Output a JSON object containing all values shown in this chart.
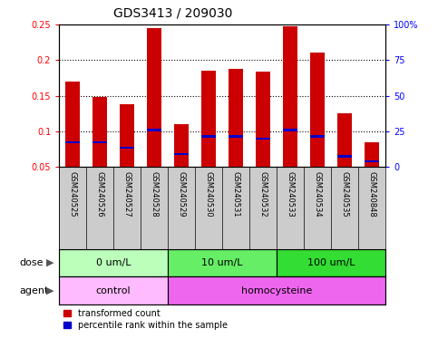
{
  "title": "GDS3413 / 209030",
  "samples": [
    "GSM240525",
    "GSM240526",
    "GSM240527",
    "GSM240528",
    "GSM240529",
    "GSM240530",
    "GSM240531",
    "GSM240532",
    "GSM240533",
    "GSM240534",
    "GSM240535",
    "GSM240848"
  ],
  "transformed_count": [
    0.17,
    0.148,
    0.138,
    0.245,
    0.11,
    0.185,
    0.188,
    0.184,
    0.247,
    0.21,
    0.125,
    0.085
  ],
  "percentile_rank": [
    0.085,
    0.085,
    0.077,
    0.102,
    0.068,
    0.093,
    0.093,
    0.09,
    0.102,
    0.093,
    0.065,
    0.058
  ],
  "bar_bottom": 0.05,
  "ylim_left": [
    0.05,
    0.25
  ],
  "ylim_right": [
    0,
    100
  ],
  "yticks_left": [
    0.05,
    0.1,
    0.15,
    0.2,
    0.25
  ],
  "ytick_labels_left": [
    "0.05",
    "0.1",
    "0.15",
    "0.2",
    "0.25"
  ],
  "yticks_right": [
    0,
    25,
    50,
    75,
    100
  ],
  "ytick_labels_right": [
    "0",
    "25",
    "50",
    "75",
    "100%"
  ],
  "dose_groups": [
    {
      "label": "0 um/L",
      "start": 0,
      "end": 4,
      "color": "#bbffbb"
    },
    {
      "label": "10 um/L",
      "start": 4,
      "end": 8,
      "color": "#66ee66"
    },
    {
      "label": "100 um/L",
      "start": 8,
      "end": 12,
      "color": "#33dd33"
    }
  ],
  "agent_groups": [
    {
      "label": "control",
      "start": 0,
      "end": 4,
      "color": "#ffbbff"
    },
    {
      "label": "homocysteine",
      "start": 4,
      "end": 12,
      "color": "#ee66ee"
    }
  ],
  "dose_label": "dose",
  "agent_label": "agent",
  "legend_red": "transformed count",
  "legend_blue": "percentile rank within the sample",
  "bar_width": 0.55,
  "bar_color_red": "#cc0000",
  "bar_color_blue": "#0000cc",
  "blue_bar_height": 0.003,
  "bg_names": "#cccccc",
  "title_fontsize": 10,
  "tick_fontsize": 7,
  "sample_fontsize": 6,
  "annot_fontsize": 8,
  "legend_fontsize": 7
}
